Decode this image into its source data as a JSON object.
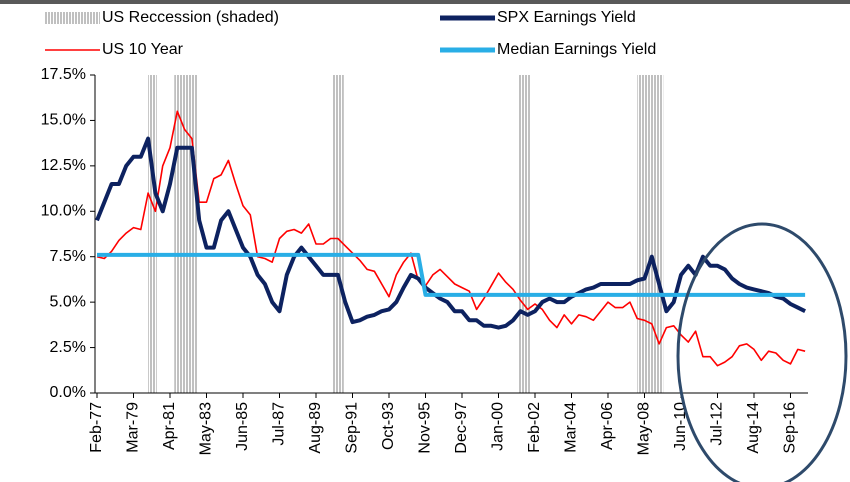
{
  "chart_data": {
    "type": "line",
    "x": [
      "Feb-77",
      "Jul-77",
      "Dec-77",
      "May-78",
      "Oct-78",
      "Mar-79",
      "Aug-79",
      "Jan-80",
      "Jun-80",
      "Nov-80",
      "Apr-81",
      "Sep-81",
      "Feb-82",
      "Jul-82",
      "Dec-82",
      "May-83",
      "Oct-83",
      "Mar-84",
      "Aug-84",
      "Jan-85",
      "Jun-85",
      "Nov-85",
      "Apr-86",
      "Sep-86",
      "Feb-87",
      "Jul-87",
      "Dec-87",
      "May-88",
      "Oct-88",
      "Mar-89",
      "Aug-89",
      "Jan-90",
      "Jun-90",
      "Nov-90",
      "Apr-91",
      "Sep-91",
      "Feb-92",
      "Jul-92",
      "Dec-92",
      "May-93",
      "Oct-93",
      "Mar-94",
      "Aug-94",
      "Jan-95",
      "Jun-95",
      "Nov-95",
      "Apr-96",
      "Sep-96",
      "Feb-97",
      "Jul-97",
      "Dec-97",
      "May-98",
      "Oct-98",
      "Mar-99",
      "Aug-99",
      "Jan-00",
      "Jun-00",
      "Nov-00",
      "Apr-01",
      "Sep-01",
      "Feb-02",
      "Jul-02",
      "Dec-02",
      "May-03",
      "Oct-03",
      "Mar-04",
      "Aug-04",
      "Jan-05",
      "Jun-05",
      "Nov-05",
      "Apr-06",
      "Sep-06",
      "Feb-07",
      "Jul-07",
      "Dec-07",
      "May-08",
      "Oct-08",
      "Mar-09",
      "Aug-09",
      "Jan-10",
      "Jun-10",
      "Nov-10",
      "Apr-11",
      "Sep-11",
      "Feb-12",
      "Jul-12",
      "Dec-12",
      "May-13",
      "Oct-13",
      "Mar-14",
      "Aug-14",
      "Jan-15",
      "Jun-15",
      "Nov-15",
      "Apr-16",
      "Sep-16",
      "Feb-17",
      "Jul-17"
    ],
    "series": [
      {
        "name": "SPX Earnings Yield",
        "color": "#0d2260",
        "width": 4,
        "values": [
          9.5,
          10.5,
          11.5,
          11.5,
          12.5,
          13.0,
          13.0,
          14.0,
          11.0,
          10.0,
          11.5,
          13.5,
          13.5,
          13.5,
          9.5,
          8.0,
          8.0,
          9.5,
          10.0,
          9.0,
          8.0,
          7.5,
          6.5,
          6.0,
          5.0,
          4.5,
          6.5,
          7.5,
          8.0,
          7.5,
          7.0,
          6.5,
          6.5,
          6.5,
          5.0,
          3.9,
          4.0,
          4.2,
          4.3,
          4.5,
          4.6,
          5.0,
          5.8,
          6.5,
          6.3,
          5.8,
          5.5,
          5.2,
          5.0,
          4.5,
          4.5,
          4.0,
          4.0,
          3.7,
          3.7,
          3.6,
          3.7,
          4.0,
          4.5,
          4.3,
          4.5,
          5.0,
          5.2,
          5.0,
          5.0,
          5.3,
          5.5,
          5.7,
          5.8,
          6.0,
          6.0,
          6.0,
          6.0,
          6.0,
          6.2,
          6.3,
          7.5,
          6.0,
          4.5,
          5.0,
          6.5,
          7.0,
          6.5,
          7.5,
          7.0,
          7.0,
          6.8,
          6.3,
          6.0,
          5.8,
          5.7,
          5.6,
          5.5,
          5.3,
          5.2,
          4.9,
          4.7,
          4.5
        ]
      },
      {
        "name": "US 10 Year",
        "color": "#ff0000",
        "width": 1.6,
        "values": [
          7.5,
          7.4,
          7.8,
          8.4,
          8.8,
          9.1,
          9.0,
          11.0,
          10.0,
          12.5,
          13.5,
          15.5,
          14.5,
          14.0,
          10.5,
          10.5,
          11.8,
          12.0,
          12.8,
          11.5,
          10.3,
          9.8,
          7.5,
          7.4,
          7.2,
          8.5,
          8.9,
          9.0,
          8.8,
          9.3,
          8.2,
          8.2,
          8.5,
          8.5,
          8.1,
          7.7,
          7.3,
          6.8,
          6.7,
          6.0,
          5.3,
          6.5,
          7.2,
          7.7,
          6.2,
          5.9,
          6.5,
          6.8,
          6.4,
          6.0,
          5.8,
          5.6,
          4.6,
          5.2,
          5.9,
          6.6,
          6.1,
          5.7,
          5.1,
          4.6,
          4.9,
          4.6,
          4.0,
          3.6,
          4.3,
          3.8,
          4.3,
          4.2,
          4.0,
          4.5,
          5.0,
          4.7,
          4.7,
          5.0,
          4.1,
          4.0,
          3.8,
          2.7,
          3.6,
          3.7,
          3.2,
          2.8,
          3.4,
          2.0,
          2.0,
          1.5,
          1.7,
          2.0,
          2.6,
          2.7,
          2.4,
          1.8,
          2.3,
          2.2,
          1.8,
          1.6,
          2.4,
          2.3
        ]
      },
      {
        "name": "Median Earnings Yield",
        "color": "#29aee6",
        "width": 4,
        "values": [
          7.6,
          7.6,
          7.6,
          7.6,
          7.6,
          7.6,
          7.6,
          7.6,
          7.6,
          7.6,
          7.6,
          7.6,
          7.6,
          7.6,
          7.6,
          7.6,
          7.6,
          7.6,
          7.6,
          7.6,
          7.6,
          7.6,
          7.6,
          7.6,
          7.6,
          7.6,
          7.6,
          7.6,
          7.6,
          7.6,
          7.6,
          7.6,
          7.6,
          7.6,
          7.6,
          7.6,
          7.6,
          7.6,
          7.6,
          7.6,
          7.6,
          7.6,
          7.6,
          7.6,
          7.6,
          5.4,
          5.4,
          5.4,
          5.4,
          5.4,
          5.4,
          5.4,
          5.4,
          5.4,
          5.4,
          5.4,
          5.4,
          5.4,
          5.4,
          5.4,
          5.4,
          5.4,
          5.4,
          5.4,
          5.4,
          5.4,
          5.4,
          5.4,
          5.4,
          5.4,
          5.4,
          5.4,
          5.4,
          5.4,
          5.4,
          5.4,
          5.4,
          5.4,
          5.4,
          5.4,
          5.4,
          5.4,
          5.4,
          5.4,
          5.4,
          5.4,
          5.4,
          5.4,
          5.4,
          5.4,
          5.4,
          5.4,
          5.4,
          5.4,
          5.4,
          5.4,
          5.4,
          5.4
        ]
      }
    ],
    "recession": {
      "name": "US Reccession (shaded)",
      "color": "#a6a6a6",
      "periods": [
        {
          "start": "Jan-80",
          "end": "Jul-80"
        },
        {
          "start": "Jul-81",
          "end": "Nov-82"
        },
        {
          "start": "Jul-90",
          "end": "Mar-91"
        },
        {
          "start": "Mar-01",
          "end": "Nov-01"
        },
        {
          "start": "Dec-07",
          "end": "Jun-09"
        }
      ]
    },
    "xlim": [
      "Feb-77",
      "Sep-17"
    ],
    "xticks": [
      "Feb-77",
      "Mar-79",
      "Apr-81",
      "May-83",
      "Jun-85",
      "Jul-87",
      "Aug-89",
      "Sep-91",
      "Oct-93",
      "Nov-95",
      "Dec-97",
      "Jan-00",
      "Feb-02",
      "Mar-04",
      "Apr-06",
      "May-08",
      "Jun-10",
      "Jul-12",
      "Aug-14",
      "Sep-16"
    ],
    "ylim": [
      0,
      17.5
    ],
    "yticks": [
      {
        "value": 0,
        "label": "0.0%"
      },
      {
        "value": 2.5,
        "label": "2.5%"
      },
      {
        "value": 5,
        "label": "5.0%"
      },
      {
        "value": 7.5,
        "label": "7.5%"
      },
      {
        "value": 10,
        "label": "10.0%"
      },
      {
        "value": 12.5,
        "label": "12.5%"
      },
      {
        "value": 15,
        "label": "15.0%"
      },
      {
        "value": 17.5,
        "label": "17.5%"
      }
    ],
    "grid": false
  }
}
